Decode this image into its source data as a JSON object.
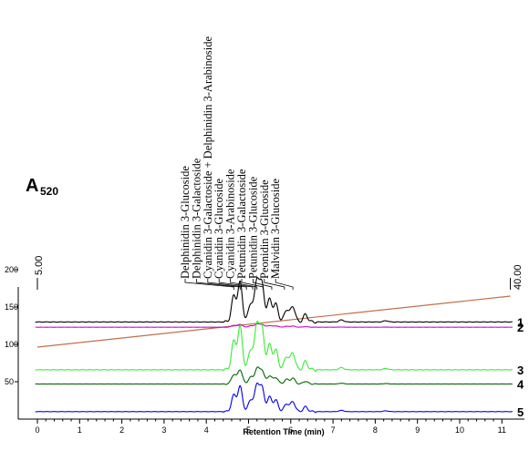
{
  "chart_data": {
    "type": "line",
    "ylabel_main": "A",
    "ylabel_sub": "520",
    "xlabel": "Retention Time (min)",
    "xlim": [
      -0.2,
      11.3
    ],
    "x_ticks": [
      "0",
      "1",
      "2",
      "3",
      "4",
      "5",
      "6",
      "7",
      "8",
      "9",
      "10",
      "11"
    ],
    "y_ticks": [
      "200",
      "150",
      "100",
      "50"
    ],
    "y_tick_values": [
      200,
      150,
      100,
      50
    ],
    "gradient": {
      "start_label": "5.00",
      "end_label": "40.00",
      "start_x": 0,
      "end_x": 11.2,
      "color": "#c0704a"
    },
    "peak_labels": [
      {
        "name": "Delphinidin 3-Glucoside",
        "x": 4.65
      },
      {
        "name": "Delphinidin 3-Galactoside",
        "x": 4.8
      },
      {
        "name": "Cyanidin 3-Galactoside + Delphinidin 3-Arabinoside",
        "x": 4.95
      },
      {
        "name": "Cyanidin 3-Glucoside",
        "x": 5.1
      },
      {
        "name": "Cyanidin 3-Arabinoside",
        "x": 5.2
      },
      {
        "name": "Petunidin 3-Galactoside",
        "x": 5.35
      },
      {
        "name": "Petunidin 3-Glucoside",
        "x": 5.55
      },
      {
        "name": "Peonidin 3-Glucoside",
        "x": 5.85
      },
      {
        "name": "Malvidin 3-Glucoside",
        "x": 6.05
      }
    ],
    "series": [
      {
        "name": "1",
        "color": "#000000",
        "baseline": 130
      },
      {
        "name": "2",
        "color": "#cc00cc",
        "baseline": 123
      },
      {
        "name": "3",
        "color": "#33ee33",
        "baseline": 66
      },
      {
        "name": "4",
        "color": "#006600",
        "baseline": 47
      },
      {
        "name": "5",
        "color": "#0000ee",
        "baseline": 10
      }
    ],
    "peaks": [
      {
        "x": 4.65,
        "h": 0.62
      },
      {
        "x": 4.8,
        "h": 0.95
      },
      {
        "x": 5.05,
        "h": 0.45
      },
      {
        "x": 5.2,
        "h": 1.0
      },
      {
        "x": 5.32,
        "h": 0.88
      },
      {
        "x": 5.5,
        "h": 0.55
      },
      {
        "x": 5.65,
        "h": 0.42
      },
      {
        "x": 5.9,
        "h": 0.3
      },
      {
        "x": 6.05,
        "h": 0.38
      },
      {
        "x": 6.35,
        "h": 0.18
      },
      {
        "x": 7.2,
        "h": 0.05
      },
      {
        "x": 8.25,
        "h": 0.03
      }
    ],
    "peak_scale": [
      55,
      4,
      60,
      20,
      35
    ]
  }
}
